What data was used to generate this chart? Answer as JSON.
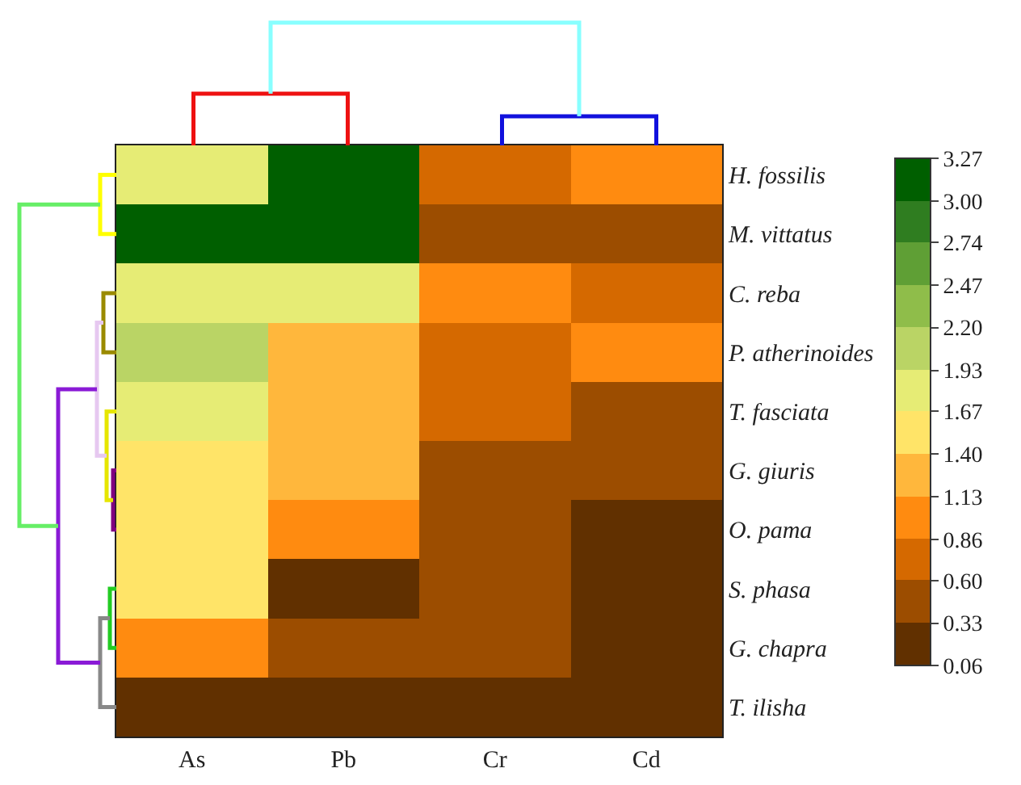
{
  "chart_data": {
    "type": "heatmap",
    "categories": [
      "As",
      "Pb",
      "Cr",
      "Cd"
    ],
    "y_categories": [
      "H. fossilis",
      "M. vittatus",
      "C. reba",
      "P. atherinoides",
      "T. fasciata",
      "G. giuris",
      "O. pama",
      "S. phasa",
      "G. chapra",
      "T. ilisha"
    ],
    "cells": [
      [
        1.8,
        3.13,
        0.73,
        1.0
      ],
      [
        3.13,
        3.13,
        0.47,
        0.47
      ],
      [
        1.8,
        1.8,
        1.0,
        0.73
      ],
      [
        2.07,
        1.27,
        0.73,
        1.0
      ],
      [
        1.8,
        1.27,
        0.73,
        0.47
      ],
      [
        1.53,
        1.27,
        0.47,
        0.47
      ],
      [
        1.53,
        1.0,
        0.47,
        0.2
      ],
      [
        1.53,
        0.2,
        0.47,
        0.2
      ],
      [
        1.0,
        0.47,
        0.47,
        0.2
      ],
      [
        0.2,
        0.2,
        0.2,
        0.2
      ]
    ],
    "clim": [
      0.06,
      3.27
    ],
    "cticks": [
      0.06,
      0.33,
      {
        "value": 0.6,
        "label": "0.60"
      },
      0.86,
      1.13,
      {
        "value": 1.4,
        "label": "1.40"
      },
      1.67,
      1.93,
      {
        "value": 2.2,
        "label": "2.20"
      },
      2.47,
      2.74,
      {
        "value": 3,
        "label": "3.00"
      },
      3.27
    ]
  }
}
